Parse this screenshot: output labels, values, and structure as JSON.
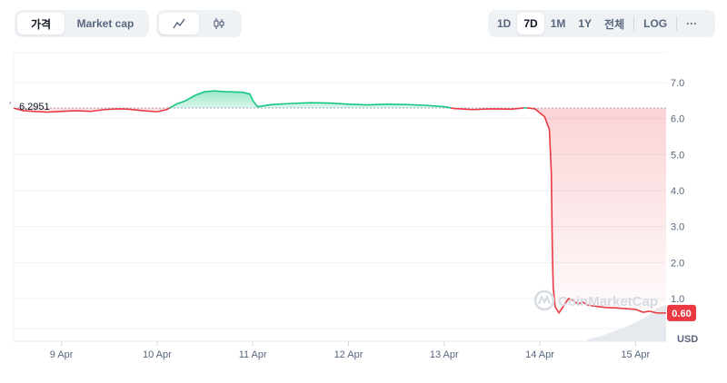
{
  "controls": {
    "chart_type_tabs": [
      {
        "label": "가격",
        "active": true
      },
      {
        "label": "Market cap",
        "active": false
      }
    ],
    "chart_style_buttons": [
      {
        "icon": "line-chart-icon",
        "active": true
      },
      {
        "icon": "candlestick-icon",
        "active": false
      }
    ],
    "time_ranges": [
      {
        "label": "1D",
        "active": false
      },
      {
        "label": "7D",
        "active": true
      },
      {
        "label": "1M",
        "active": false
      },
      {
        "label": "1Y",
        "active": false
      },
      {
        "label": "전체",
        "active": false
      }
    ],
    "log_label": "LOG",
    "more_label": "···"
  },
  "chart_data": {
    "type": "line",
    "reference_value": 6.2951,
    "reference_label": "6.2951",
    "current_value": 0.6,
    "current_label": "0.60",
    "y_unit_label": "USD",
    "ylim": [
      0,
      7.0
    ],
    "yticks": [
      {
        "value": 7.0,
        "label": "7.0"
      },
      {
        "value": 6.0,
        "label": "6.0"
      },
      {
        "value": 5.0,
        "label": "5.0"
      },
      {
        "value": 4.0,
        "label": "4.0"
      },
      {
        "value": 3.0,
        "label": "3.0"
      },
      {
        "value": 2.0,
        "label": "2.0"
      },
      {
        "value": 1.0,
        "label": "1.0"
      }
    ],
    "xticks": [
      {
        "t": 0.5,
        "label": "9 Apr"
      },
      {
        "t": 1.5,
        "label": "10 Apr"
      },
      {
        "t": 2.5,
        "label": "11 Apr"
      },
      {
        "t": 3.5,
        "label": "12 Apr"
      },
      {
        "t": 4.5,
        "label": "13 Apr"
      },
      {
        "t": 5.5,
        "label": "14 Apr"
      },
      {
        "t": 6.5,
        "label": "15 Apr"
      }
    ],
    "x_range": [
      0,
      6.82
    ],
    "series": [
      {
        "points": [
          [
            0.0,
            6.29
          ],
          [
            0.1,
            6.22
          ],
          [
            0.2,
            6.2
          ],
          [
            0.35,
            6.18
          ],
          [
            0.5,
            6.2
          ],
          [
            0.65,
            6.22
          ],
          [
            0.8,
            6.2
          ],
          [
            0.95,
            6.25
          ],
          [
            1.1,
            6.27
          ],
          [
            1.2,
            6.26
          ],
          [
            1.35,
            6.22
          ],
          [
            1.5,
            6.19
          ],
          [
            1.6,
            6.25
          ],
          [
            1.7,
            6.4
          ],
          [
            1.8,
            6.5
          ],
          [
            1.9,
            6.65
          ],
          [
            2.0,
            6.75
          ],
          [
            2.1,
            6.77
          ],
          [
            2.2,
            6.75
          ],
          [
            2.3,
            6.74
          ],
          [
            2.4,
            6.73
          ],
          [
            2.47,
            6.68
          ],
          [
            2.5,
            6.5
          ],
          [
            2.55,
            6.33
          ],
          [
            2.7,
            6.39
          ],
          [
            2.9,
            6.42
          ],
          [
            3.1,
            6.44
          ],
          [
            3.3,
            6.43
          ],
          [
            3.5,
            6.4
          ],
          [
            3.7,
            6.38
          ],
          [
            3.9,
            6.4
          ],
          [
            4.1,
            6.39
          ],
          [
            4.3,
            6.37
          ],
          [
            4.5,
            6.33
          ],
          [
            4.6,
            6.28
          ],
          [
            4.8,
            6.25
          ],
          [
            5.0,
            6.27
          ],
          [
            5.2,
            6.26
          ],
          [
            5.35,
            6.3
          ],
          [
            5.45,
            6.27
          ],
          [
            5.55,
            6.05
          ],
          [
            5.6,
            5.7
          ],
          [
            5.62,
            4.5
          ],
          [
            5.63,
            2.5
          ],
          [
            5.64,
            1.3
          ],
          [
            5.66,
            0.78
          ],
          [
            5.7,
            0.6
          ],
          [
            5.75,
            0.8
          ],
          [
            5.8,
            1.0
          ],
          [
            5.85,
            0.95
          ],
          [
            5.9,
            0.85
          ],
          [
            5.95,
            0.9
          ],
          [
            6.0,
            0.82
          ],
          [
            6.1,
            0.78
          ],
          [
            6.2,
            0.75
          ],
          [
            6.3,
            0.74
          ],
          [
            6.4,
            0.72
          ],
          [
            6.5,
            0.7
          ],
          [
            6.58,
            0.62
          ],
          [
            6.65,
            0.65
          ],
          [
            6.72,
            0.6
          ],
          [
            6.82,
            0.6
          ]
        ]
      }
    ],
    "volume": [
      [
        6.0,
        0.05
      ],
      [
        6.15,
        0.15
      ],
      [
        6.3,
        0.3
      ],
      [
        6.45,
        0.45
      ],
      [
        6.6,
        0.65
      ],
      [
        6.72,
        0.9
      ],
      [
        6.82,
        1.0
      ]
    ],
    "colors": {
      "up": "#16c784",
      "down": "#ea3943",
      "reference": "#a1a7bb",
      "grid": "#eff2f5",
      "volume": "#e6e9ee"
    },
    "watermark": "CoinMarketCap"
  }
}
